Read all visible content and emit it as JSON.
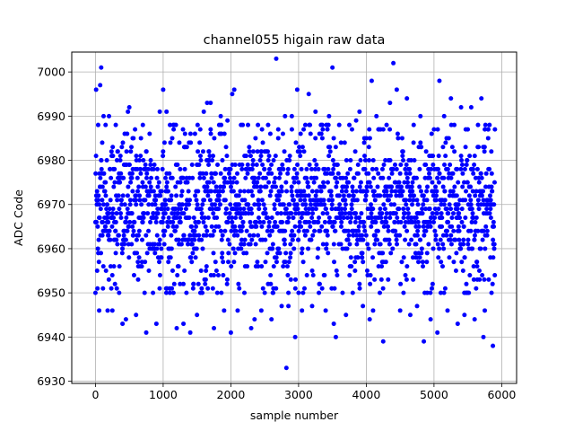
{
  "chart_data": {
    "type": "scatter",
    "title": "channel055 higain raw data",
    "xlabel": "sample number",
    "ylabel": "ADC Code",
    "xlim": [
      -350,
      6220
    ],
    "ylim": [
      6929.5,
      7004.5
    ],
    "x_ticks": [
      0,
      1000,
      2000,
      3000,
      4000,
      5000,
      6000
    ],
    "x_tick_labels": [
      "0",
      "1000",
      "2000",
      "3000",
      "4000",
      "5000",
      "6000"
    ],
    "y_ticks": [
      6930,
      6940,
      6950,
      6960,
      6970,
      6980,
      6990,
      7000
    ],
    "y_tick_labels": [
      "6930",
      "6940",
      "6950",
      "6960",
      "6970",
      "6980",
      "6990",
      "7000"
    ],
    "grid": true,
    "marker_color": "#0000ff",
    "series": [
      {
        "points": [
          [
            0,
            6950
          ],
          [
            10,
            6996
          ],
          [
            25,
            6955
          ],
          [
            40,
            6988
          ],
          [
            55,
            6946
          ],
          [
            70,
            6997
          ],
          [
            85,
            7001
          ],
          [
            100,
            6984
          ],
          [
            120,
            6990
          ],
          [
            150,
            6988
          ],
          [
            180,
            6946
          ],
          [
            200,
            6990
          ],
          [
            250,
            6946
          ],
          [
            300,
            6988
          ],
          [
            350,
            6950
          ],
          [
            400,
            6943
          ],
          [
            450,
            6944
          ],
          [
            480,
            6991
          ],
          [
            500,
            6992
          ],
          [
            550,
            6985
          ],
          [
            600,
            6945
          ],
          [
            650,
            6980
          ],
          [
            700,
            6988
          ],
          [
            750,
            6941
          ],
          [
            800,
            6986
          ],
          [
            850,
            6950
          ],
          [
            900,
            6943
          ],
          [
            950,
            6991
          ],
          [
            1000,
            6996
          ],
          [
            1050,
            6991
          ],
          [
            1100,
            6950
          ],
          [
            1150,
            6988
          ],
          [
            1200,
            6942
          ],
          [
            1250,
            6952
          ],
          [
            1300,
            6943
          ],
          [
            1350,
            6983
          ],
          [
            1400,
            6941
          ],
          [
            1450,
            6952
          ],
          [
            1500,
            6945
          ],
          [
            1550,
            6950
          ],
          [
            1600,
            6991
          ],
          [
            1650,
            6993
          ],
          [
            1700,
            6993
          ],
          [
            1750,
            6942
          ],
          [
            1800,
            6950
          ],
          [
            1850,
            6990
          ],
          [
            1900,
            6946
          ],
          [
            1950,
            6989
          ],
          [
            2000,
            6941
          ],
          [
            2020,
            6995
          ],
          [
            2050,
            6996
          ],
          [
            2100,
            6946
          ],
          [
            2150,
            6988
          ],
          [
            2200,
            6950
          ],
          [
            2300,
            6942
          ],
          [
            2350,
            6944
          ],
          [
            2400,
            6988
          ],
          [
            2450,
            6946
          ],
          [
            2500,
            6950
          ],
          [
            2550,
            6988
          ],
          [
            2600,
            6944
          ],
          [
            2670,
            7003
          ],
          [
            2700,
            6987
          ],
          [
            2750,
            6947
          ],
          [
            2800,
            6990
          ],
          [
            2820,
            6933
          ],
          [
            2850,
            6947
          ],
          [
            2900,
            6990
          ],
          [
            2950,
            6940
          ],
          [
            2980,
            6996
          ],
          [
            3000,
            6950
          ],
          [
            3050,
            6946
          ],
          [
            3100,
            6988
          ],
          [
            3150,
            6995
          ],
          [
            3200,
            6947
          ],
          [
            3250,
            6991
          ],
          [
            3300,
            6950
          ],
          [
            3350,
            6988
          ],
          [
            3400,
            6946
          ],
          [
            3450,
            6990
          ],
          [
            3500,
            7001
          ],
          [
            3520,
            6943
          ],
          [
            3550,
            6940
          ],
          [
            3600,
            6988
          ],
          [
            3650,
            6950
          ],
          [
            3700,
            6945
          ],
          [
            3750,
            6988
          ],
          [
            3800,
            6950
          ],
          [
            3850,
            6989
          ],
          [
            3900,
            6991
          ],
          [
            3950,
            6947
          ],
          [
            4000,
            6985
          ],
          [
            4050,
            6944
          ],
          [
            4080,
            6998
          ],
          [
            4100,
            6946
          ],
          [
            4150,
            6990
          ],
          [
            4200,
            6950
          ],
          [
            4250,
            6939
          ],
          [
            4300,
            6988
          ],
          [
            4350,
            6993
          ],
          [
            4400,
            7002
          ],
          [
            4450,
            6996
          ],
          [
            4500,
            6946
          ],
          [
            4550,
            6950
          ],
          [
            4600,
            6994
          ],
          [
            4650,
            6945
          ],
          [
            4700,
            6988
          ],
          [
            4750,
            6947
          ],
          [
            4800,
            6990
          ],
          [
            4850,
            6939
          ],
          [
            4900,
            6950
          ],
          [
            4950,
            6944
          ],
          [
            5000,
            6987
          ],
          [
            5050,
            6941
          ],
          [
            5080,
            6998
          ],
          [
            5100,
            6950
          ],
          [
            5150,
            6990
          ],
          [
            5200,
            6946
          ],
          [
            5250,
            6994
          ],
          [
            5300,
            6988
          ],
          [
            5350,
            6943
          ],
          [
            5400,
            6992
          ],
          [
            5450,
            6945
          ],
          [
            5500,
            6950
          ],
          [
            5550,
            6992
          ],
          [
            5600,
            6944
          ],
          [
            5650,
            6988
          ],
          [
            5700,
            6994
          ],
          [
            5730,
            6940
          ],
          [
            5750,
            6946
          ],
          [
            5800,
            6985
          ],
          [
            5850,
            6950
          ],
          [
            5870,
            6938
          ],
          [
            5900,
            6987
          ]
        ]
      }
    ]
  }
}
